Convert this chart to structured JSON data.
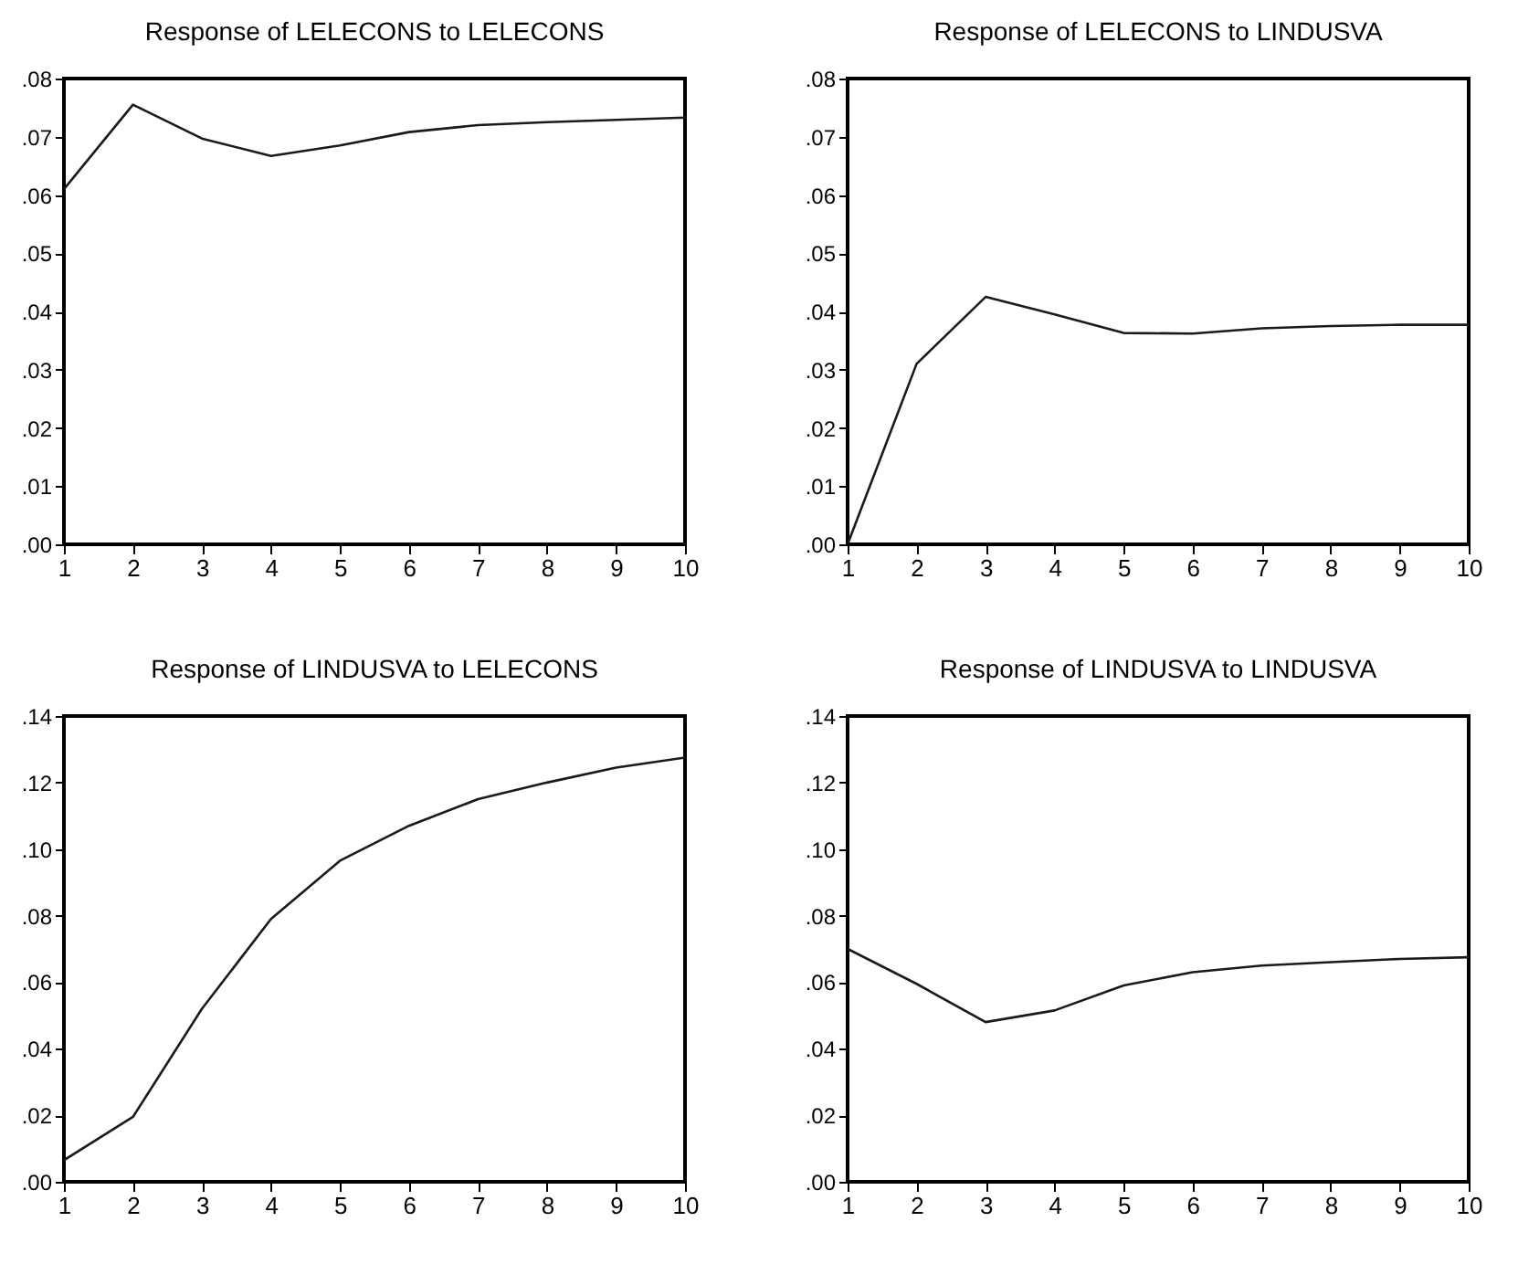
{
  "chart_data": [
    {
      "type": "line",
      "title": "Response of LELECONS to LELECONS",
      "x": [
        1,
        2,
        3,
        4,
        5,
        6,
        7,
        8,
        9,
        10
      ],
      "series": [
        {
          "color": "#1a1a1a",
          "values": [
            0.061,
            0.0755,
            0.0697,
            0.0667,
            0.0685,
            0.0708,
            0.072,
            0.0725,
            0.0729,
            0.0733
          ]
        }
      ],
      "xlim": [
        1,
        10
      ],
      "xticks": [
        1,
        2,
        3,
        4,
        5,
        6,
        7,
        8,
        9,
        10
      ],
      "ylim": [
        0,
        0.08
      ],
      "yticks": [
        {
          "value": 0,
          "label": ".00"
        },
        {
          "value": 0.01,
          "label": ".01"
        },
        {
          "value": 0.02,
          "label": ".02"
        },
        {
          "value": 0.03,
          "label": ".03"
        },
        {
          "value": 0.04,
          "label": ".04"
        },
        {
          "value": 0.05,
          "label": ".05"
        },
        {
          "value": 0.06,
          "label": ".06"
        },
        {
          "value": 0.07,
          "label": ".07"
        },
        {
          "value": 0.08,
          "label": ".08"
        }
      ],
      "grid": false,
      "marker": "none",
      "line_style": "solid"
    },
    {
      "type": "line",
      "title": "Response of LELECONS to LINDUSVA",
      "x": [
        1,
        2,
        3,
        4,
        5,
        6,
        7,
        8,
        9,
        10
      ],
      "series": [
        {
          "color": "#1a1a1a",
          "values": [
            0,
            0.031,
            0.0425,
            0.0395,
            0.0363,
            0.0362,
            0.0371,
            0.0375,
            0.0377,
            0.0377
          ]
        }
      ],
      "xlim": [
        1,
        10
      ],
      "xticks": [
        1,
        2,
        3,
        4,
        5,
        6,
        7,
        8,
        9,
        10
      ],
      "ylim": [
        0,
        0.08
      ],
      "yticks": [
        {
          "value": 0,
          "label": ".00"
        },
        {
          "value": 0.01,
          "label": ".01"
        },
        {
          "value": 0.02,
          "label": ".02"
        },
        {
          "value": 0.03,
          "label": ".03"
        },
        {
          "value": 0.04,
          "label": ".04"
        },
        {
          "value": 0.05,
          "label": ".05"
        },
        {
          "value": 0.06,
          "label": ".06"
        },
        {
          "value": 0.07,
          "label": ".07"
        },
        {
          "value": 0.08,
          "label": ".08"
        }
      ],
      "grid": false,
      "marker": "none",
      "line_style": "solid"
    },
    {
      "type": "line",
      "title": "Response of LINDUSVA to LELECONS",
      "x": [
        1,
        2,
        3,
        4,
        5,
        6,
        7,
        8,
        9,
        10
      ],
      "series": [
        {
          "color": "#1a1a1a",
          "values": [
            0.0065,
            0.0195,
            0.052,
            0.079,
            0.0965,
            0.107,
            0.115,
            0.12,
            0.1245,
            0.1275
          ]
        }
      ],
      "xlim": [
        1,
        10
      ],
      "xticks": [
        1,
        2,
        3,
        4,
        5,
        6,
        7,
        8,
        9,
        10
      ],
      "ylim": [
        0,
        0.14
      ],
      "yticks": [
        {
          "value": 0,
          "label": ".00"
        },
        {
          "value": 0.02,
          "label": ".02"
        },
        {
          "value": 0.04,
          "label": ".04"
        },
        {
          "value": 0.06,
          "label": ".06"
        },
        {
          "value": 0.08,
          "label": ".08"
        },
        {
          "value": 0.1,
          "label": ".10"
        },
        {
          "value": 0.12,
          "label": ".12"
        },
        {
          "value": 0.14,
          "label": ".14"
        }
      ],
      "grid": false,
      "marker": "none",
      "line_style": "solid"
    },
    {
      "type": "line",
      "title": "Response of LINDUSVA to LINDUSVA",
      "x": [
        1,
        2,
        3,
        4,
        5,
        6,
        7,
        8,
        9,
        10
      ],
      "series": [
        {
          "color": "#1a1a1a",
          "values": [
            0.07,
            0.0595,
            0.048,
            0.0515,
            0.059,
            0.063,
            0.065,
            0.066,
            0.067,
            0.0675
          ]
        }
      ],
      "xlim": [
        1,
        10
      ],
      "xticks": [
        1,
        2,
        3,
        4,
        5,
        6,
        7,
        8,
        9,
        10
      ],
      "ylim": [
        0,
        0.14
      ],
      "yticks": [
        {
          "value": 0,
          "label": ".00"
        },
        {
          "value": 0.02,
          "label": ".02"
        },
        {
          "value": 0.04,
          "label": ".04"
        },
        {
          "value": 0.06,
          "label": ".06"
        },
        {
          "value": 0.08,
          "label": ".08"
        },
        {
          "value": 0.1,
          "label": ".10"
        },
        {
          "value": 0.12,
          "label": ".12"
        },
        {
          "value": 0.14,
          "label": ".14"
        }
      ],
      "grid": false,
      "marker": "none",
      "line_style": "solid"
    }
  ]
}
